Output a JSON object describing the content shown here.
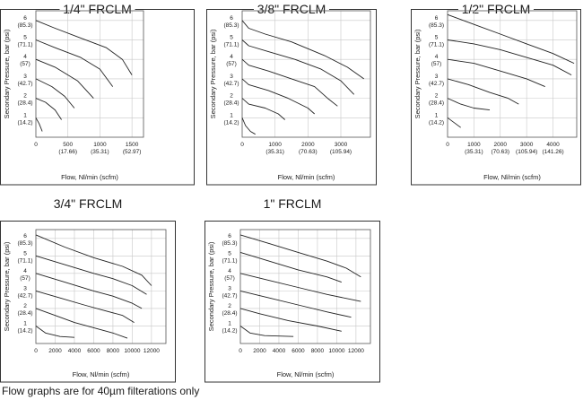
{
  "footnote": "Flow graphs are for 40µm filterations only",
  "chart_data": [
    {
      "type": "line",
      "title": "1/4\" FRCLM",
      "xlabel": "Flow, Nl/min (scfm)",
      "ylabel": "Secondary Pressure, bar (psi)",
      "xlim": [
        0,
        1680
      ],
      "ylim": [
        0,
        6.5
      ],
      "x_ticks": [
        {
          "v": 0,
          "l1": "0"
        },
        {
          "v": 500,
          "l1": "500",
          "l2": "(17.66)"
        },
        {
          "v": 1000,
          "l1": "1000",
          "l2": "(35.31)"
        },
        {
          "v": 1500,
          "l1": "1500",
          "l2": "(52.97)"
        }
      ],
      "y_ticks": [
        {
          "v": 1,
          "l1": "1",
          "l2": "(14.2)"
        },
        {
          "v": 2,
          "l1": "2",
          "l2": "(28.4)"
        },
        {
          "v": 3,
          "l1": "3",
          "l2": "(42.7)"
        },
        {
          "v": 4,
          "l1": "4",
          "l2": "(57)"
        },
        {
          "v": 5,
          "l1": "5",
          "l2": "(71.1)"
        },
        {
          "v": 6,
          "l1": "6",
          "l2": "(85.3)"
        }
      ],
      "series": [
        {
          "points": [
            [
              0,
              6.0
            ],
            [
              300,
              5.6
            ],
            [
              700,
              5.1
            ],
            [
              1100,
              4.6
            ],
            [
              1350,
              4.0
            ],
            [
              1500,
              3.2
            ]
          ]
        },
        {
          "points": [
            [
              0,
              5.0
            ],
            [
              300,
              4.6
            ],
            [
              700,
              4.1
            ],
            [
              1000,
              3.5
            ],
            [
              1200,
              2.6
            ]
          ]
        },
        {
          "points": [
            [
              0,
              4.0
            ],
            [
              300,
              3.6
            ],
            [
              650,
              2.9
            ],
            [
              900,
              2.0
            ]
          ]
        },
        {
          "points": [
            [
              0,
              3.0
            ],
            [
              250,
              2.6
            ],
            [
              450,
              2.1
            ],
            [
              600,
              1.5
            ]
          ]
        },
        {
          "points": [
            [
              0,
              2.0
            ],
            [
              150,
              1.8
            ],
            [
              300,
              1.4
            ],
            [
              400,
              0.9
            ]
          ]
        },
        {
          "points": [
            [
              0,
              1.0
            ],
            [
              50,
              0.7
            ],
            [
              100,
              0.3
            ]
          ]
        }
      ]
    },
    {
      "type": "line",
      "title": "3/8\" FRCLM",
      "xlabel": "Flow, Nl/min (scfm)",
      "ylabel": "Secondary Pressure, bar (psi)",
      "xlim": [
        0,
        3900
      ],
      "ylim": [
        0,
        6.5
      ],
      "x_ticks": [
        {
          "v": 0,
          "l1": "0"
        },
        {
          "v": 1000,
          "l1": "1000",
          "l2": "(35.31)"
        },
        {
          "v": 2000,
          "l1": "2000",
          "l2": "(70.63)"
        },
        {
          "v": 3000,
          "l1": "3000",
          "l2": "(105.94)"
        }
      ],
      "y_ticks": [
        {
          "v": 1,
          "l1": "1",
          "l2": "(14.2)"
        },
        {
          "v": 2,
          "l1": "2",
          "l2": "(28.4)"
        },
        {
          "v": 3,
          "l1": "3",
          "l2": "(42.7)"
        },
        {
          "v": 4,
          "l1": "4",
          "l2": "(57)"
        },
        {
          "v": 5,
          "l1": "5",
          "l2": "(71.1)"
        },
        {
          "v": 6,
          "l1": "6",
          "l2": "(85.3)"
        }
      ],
      "series": [
        {
          "points": [
            [
              0,
              6.0
            ],
            [
              200,
              5.6
            ],
            [
              700,
              5.3
            ],
            [
              1500,
              4.9
            ],
            [
              2500,
              4.2
            ],
            [
              3200,
              3.6
            ],
            [
              3700,
              3.0
            ]
          ]
        },
        {
          "points": [
            [
              0,
              5.0
            ],
            [
              200,
              4.7
            ],
            [
              800,
              4.4
            ],
            [
              1600,
              4.0
            ],
            [
              2400,
              3.5
            ],
            [
              3000,
              2.9
            ],
            [
              3400,
              2.2
            ]
          ]
        },
        {
          "points": [
            [
              0,
              4.0
            ],
            [
              200,
              3.7
            ],
            [
              800,
              3.4
            ],
            [
              1500,
              3.0
            ],
            [
              2200,
              2.6
            ],
            [
              2600,
              2.0
            ],
            [
              2900,
              1.6
            ]
          ]
        },
        {
          "points": [
            [
              0,
              3.0
            ],
            [
              200,
              2.7
            ],
            [
              800,
              2.4
            ],
            [
              1400,
              2.0
            ],
            [
              2000,
              1.5
            ],
            [
              2200,
              1.2
            ]
          ]
        },
        {
          "points": [
            [
              0,
              2.0
            ],
            [
              200,
              1.7
            ],
            [
              700,
              1.5
            ],
            [
              1100,
              1.2
            ],
            [
              1300,
              0.9
            ]
          ]
        },
        {
          "points": [
            [
              0,
              1.0
            ],
            [
              100,
              0.6
            ],
            [
              250,
              0.3
            ],
            [
              400,
              0.15
            ]
          ]
        }
      ]
    },
    {
      "type": "line",
      "title": "1/2\" FRCLM",
      "xlabel": "Flow, Nl/min (scfm)",
      "ylabel": "Secondary Pressure, bar (psi)",
      "xlim": [
        0,
        4900
      ],
      "ylim": [
        0,
        6.5
      ],
      "x_ticks": [
        {
          "v": 0,
          "l1": "0"
        },
        {
          "v": 1000,
          "l1": "1000",
          "l2": "(35.31)"
        },
        {
          "v": 2000,
          "l1": "2000",
          "l2": "(70.63)"
        },
        {
          "v": 3000,
          "l1": "3000",
          "l2": "(105.94)"
        },
        {
          "v": 4000,
          "l1": "4000",
          "l2": "(141.26)"
        }
      ],
      "y_ticks": [
        {
          "v": 1,
          "l1": "1",
          "l2": "(14.2)"
        },
        {
          "v": 2,
          "l1": "2",
          "l2": "(28.4)"
        },
        {
          "v": 3,
          "l1": "3",
          "l2": "(42.7)"
        },
        {
          "v": 4,
          "l1": "4",
          "l2": "(57)"
        },
        {
          "v": 5,
          "l1": "5",
          "l2": "(71.1)"
        },
        {
          "v": 6,
          "l1": "6",
          "l2": "(85.3)"
        }
      ],
      "series": [
        {
          "points": [
            [
              0,
              6.3
            ],
            [
              1000,
              5.8
            ],
            [
              2000,
              5.3
            ],
            [
              3000,
              4.8
            ],
            [
              4000,
              4.3
            ],
            [
              4800,
              3.8
            ]
          ]
        },
        {
          "points": [
            [
              0,
              5.0
            ],
            [
              1000,
              4.8
            ],
            [
              2000,
              4.5
            ],
            [
              3000,
              4.1
            ],
            [
              4000,
              3.7
            ],
            [
              4700,
              3.2
            ]
          ]
        },
        {
          "points": [
            [
              0,
              4.0
            ],
            [
              1000,
              3.8
            ],
            [
              2000,
              3.4
            ],
            [
              3000,
              3.0
            ],
            [
              3700,
              2.6
            ]
          ]
        },
        {
          "points": [
            [
              0,
              3.0
            ],
            [
              800,
              2.7
            ],
            [
              1600,
              2.3
            ],
            [
              2300,
              2.0
            ],
            [
              2700,
              1.7
            ]
          ]
        },
        {
          "points": [
            [
              0,
              2.0
            ],
            [
              500,
              1.7
            ],
            [
              1000,
              1.5
            ],
            [
              1600,
              1.4
            ]
          ]
        },
        {
          "points": [
            [
              0,
              1.0
            ],
            [
              300,
              0.7
            ],
            [
              500,
              0.5
            ]
          ]
        }
      ]
    },
    {
      "type": "line",
      "title": "3/4\" FRCLM",
      "xlabel": "Flow, Nl/min (scfm)",
      "ylabel": "Secondary Pressure, bar (psi)",
      "xlim": [
        0,
        13500
      ],
      "ylim": [
        0,
        6.5
      ],
      "x_ticks": [
        {
          "v": 0,
          "l1": "0"
        },
        {
          "v": 2000,
          "l1": "2000"
        },
        {
          "v": 4000,
          "l1": "4000"
        },
        {
          "v": 6000,
          "l1": "6000"
        },
        {
          "v": 8000,
          "l1": "8000"
        },
        {
          "v": 10000,
          "l1": "10000"
        },
        {
          "v": 12000,
          "l1": "12000"
        }
      ],
      "y_ticks": [
        {
          "v": 1,
          "l1": "1",
          "l2": "(14.2)"
        },
        {
          "v": 2,
          "l1": "2",
          "l2": "(28.4)"
        },
        {
          "v": 3,
          "l1": "3",
          "l2": "(42.7)"
        },
        {
          "v": 4,
          "l1": "4",
          "l2": "(57)"
        },
        {
          "v": 5,
          "l1": "5",
          "l2": "(71.1)"
        },
        {
          "v": 6,
          "l1": "6",
          "l2": "(85.3)"
        }
      ],
      "series": [
        {
          "points": [
            [
              0,
              6.2
            ],
            [
              3000,
              5.5
            ],
            [
              6000,
              4.9
            ],
            [
              9000,
              4.4
            ],
            [
              11000,
              3.9
            ],
            [
              12000,
              3.3
            ]
          ]
        },
        {
          "points": [
            [
              0,
              5.0
            ],
            [
              3000,
              4.5
            ],
            [
              6000,
              4.0
            ],
            [
              8000,
              3.7
            ],
            [
              10000,
              3.3
            ],
            [
              11500,
              2.8
            ]
          ]
        },
        {
          "points": [
            [
              0,
              4.0
            ],
            [
              3000,
              3.5
            ],
            [
              6000,
              3.0
            ],
            [
              8000,
              2.7
            ],
            [
              10000,
              2.3
            ],
            [
              11000,
              2.0
            ]
          ]
        },
        {
          "points": [
            [
              0,
              3.0
            ],
            [
              2500,
              2.6
            ],
            [
              5000,
              2.2
            ],
            [
              7000,
              1.9
            ],
            [
              9000,
              1.6
            ],
            [
              10200,
              1.2
            ]
          ]
        },
        {
          "points": [
            [
              0,
              2.0
            ],
            [
              2000,
              1.6
            ],
            [
              4000,
              1.2
            ],
            [
              6000,
              0.9
            ],
            [
              8000,
              0.6
            ],
            [
              9500,
              0.3
            ]
          ]
        },
        {
          "points": [
            [
              0,
              1.0
            ],
            [
              1000,
              0.6
            ],
            [
              2500,
              0.4
            ],
            [
              4000,
              0.35
            ]
          ]
        }
      ]
    },
    {
      "type": "line",
      "title": "1\" FRCLM",
      "xlabel": "Flow, Nl/min (scfm)",
      "ylabel": "Secondary Pressure, bar (psi)",
      "xlim": [
        0,
        13500
      ],
      "ylim": [
        0,
        6.5
      ],
      "x_ticks": [
        {
          "v": 0,
          "l1": "0"
        },
        {
          "v": 2000,
          "l1": "2000"
        },
        {
          "v": 4000,
          "l1": "4000"
        },
        {
          "v": 6000,
          "l1": "6000"
        },
        {
          "v": 8000,
          "l1": "8000"
        },
        {
          "v": 10000,
          "l1": "10000"
        },
        {
          "v": 12000,
          "l1": "12000"
        }
      ],
      "y_ticks": [
        {
          "v": 1,
          "l1": "1",
          "l2": "(14.2)"
        },
        {
          "v": 2,
          "l1": "2",
          "l2": "(28.4)"
        },
        {
          "v": 3,
          "l1": "3",
          "l2": "(42.7)"
        },
        {
          "v": 4,
          "l1": "4",
          "l2": "(57)"
        },
        {
          "v": 5,
          "l1": "5",
          "l2": "(71.1)"
        },
        {
          "v": 6,
          "l1": "6",
          "l2": "(85.3)"
        }
      ],
      "series": [
        {
          "points": [
            [
              0,
              6.2
            ],
            [
              3000,
              5.7
            ],
            [
              6000,
              5.2
            ],
            [
              9000,
              4.7
            ],
            [
              11000,
              4.3
            ],
            [
              12500,
              3.8
            ]
          ]
        },
        {
          "points": [
            [
              0,
              5.2
            ],
            [
              3000,
              4.7
            ],
            [
              6000,
              4.2
            ],
            [
              9000,
              3.8
            ],
            [
              10500,
              3.5
            ]
          ]
        },
        {
          "points": [
            [
              0,
              4.0
            ],
            [
              3000,
              3.6
            ],
            [
              6000,
              3.2
            ],
            [
              9000,
              2.8
            ],
            [
              12500,
              2.4
            ]
          ]
        },
        {
          "points": [
            [
              0,
              3.0
            ],
            [
              3000,
              2.6
            ],
            [
              6000,
              2.2
            ],
            [
              9000,
              1.8
            ],
            [
              11500,
              1.5
            ]
          ]
        },
        {
          "points": [
            [
              0,
              2.0
            ],
            [
              2000,
              1.7
            ],
            [
              5000,
              1.3
            ],
            [
              8000,
              1.0
            ],
            [
              10500,
              0.7
            ]
          ]
        },
        {
          "points": [
            [
              0,
              1.0
            ],
            [
              1000,
              0.6
            ],
            [
              2500,
              0.45
            ],
            [
              5500,
              0.4
            ]
          ]
        }
      ]
    }
  ]
}
